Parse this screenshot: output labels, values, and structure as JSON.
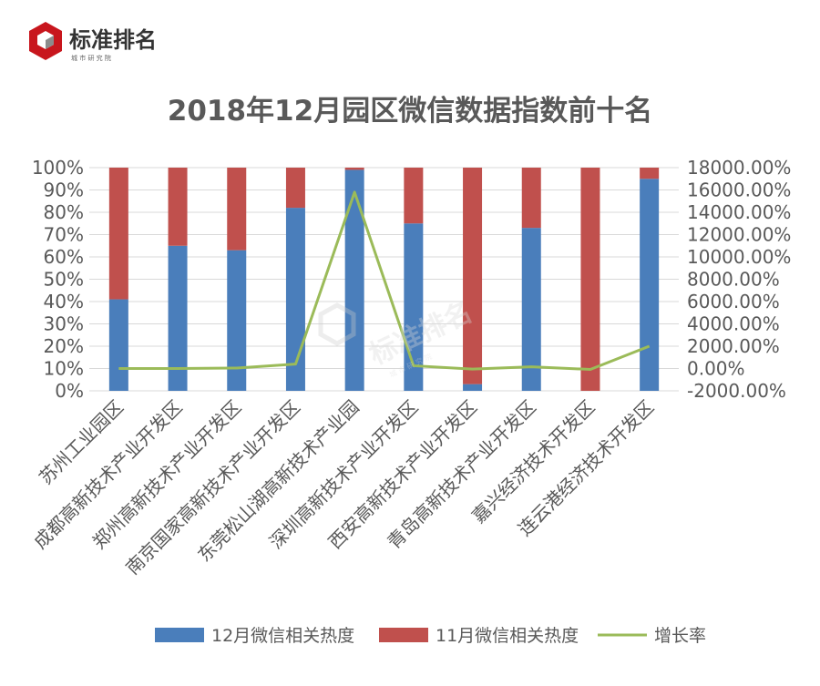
{
  "brand": {
    "name": "标准排名",
    "subtitle": "城 市 研 究 院",
    "watermark": "标准排名",
    "watermark_sub": "城 市 研 究 院"
  },
  "colors": {
    "series_dec": "#4a7ebb",
    "series_nov": "#c0504d",
    "growth": "#9bbb59",
    "logo_red": "#c8161d",
    "text": "#595959"
  },
  "chart_data": {
    "type": "bar",
    "stacked": "percent",
    "title": "2018年12月园区微信数据指数前十名",
    "categories": [
      "苏州工业园区",
      "成都高新技术产业开发区",
      "郑州高新技术产业开发区",
      "南京国家高新技术产业开发区",
      "东莞松山湖高新技术产业园",
      "深圳高新技术产业开发区",
      "西安高新技术产业开发区",
      "青岛高新技术产业开发区",
      "嘉兴经济技术开发区",
      "连云港经济技术开发区"
    ],
    "series": [
      {
        "name": "12月微信相关热度",
        "axis": "left",
        "values": [
          41,
          65,
          63,
          82,
          99,
          75,
          3,
          73,
          0,
          95
        ]
      },
      {
        "name": "11月微信相关热度",
        "axis": "left",
        "values": [
          59,
          35,
          37,
          18,
          1,
          25,
          97,
          27,
          100,
          5
        ]
      },
      {
        "name": "增长率",
        "axis": "right",
        "type": "line",
        "values": [
          0,
          0,
          40,
          400,
          15800,
          250,
          -50,
          150,
          -80,
          2000
        ]
      }
    ],
    "ylim_left": [
      0,
      100
    ],
    "yticks_left": [
      "100%",
      "90%",
      "80%",
      "70%",
      "60%",
      "50%",
      "40%",
      "30%",
      "20%",
      "10%",
      "0%"
    ],
    "ylim_right": [
      -2000,
      18000
    ],
    "yticks_right": [
      "18000.00%",
      "16000.00%",
      "14000.00%",
      "12000.00%",
      "10000.00%",
      "8000.00%",
      "6000.00%",
      "4000.00%",
      "2000.00%",
      "0.00%",
      "-2000.00%"
    ],
    "legend": [
      "12月微信相关热度",
      "11月微信相关热度",
      "增长率"
    ],
    "legend_position": "bottom",
    "grid": true
  }
}
